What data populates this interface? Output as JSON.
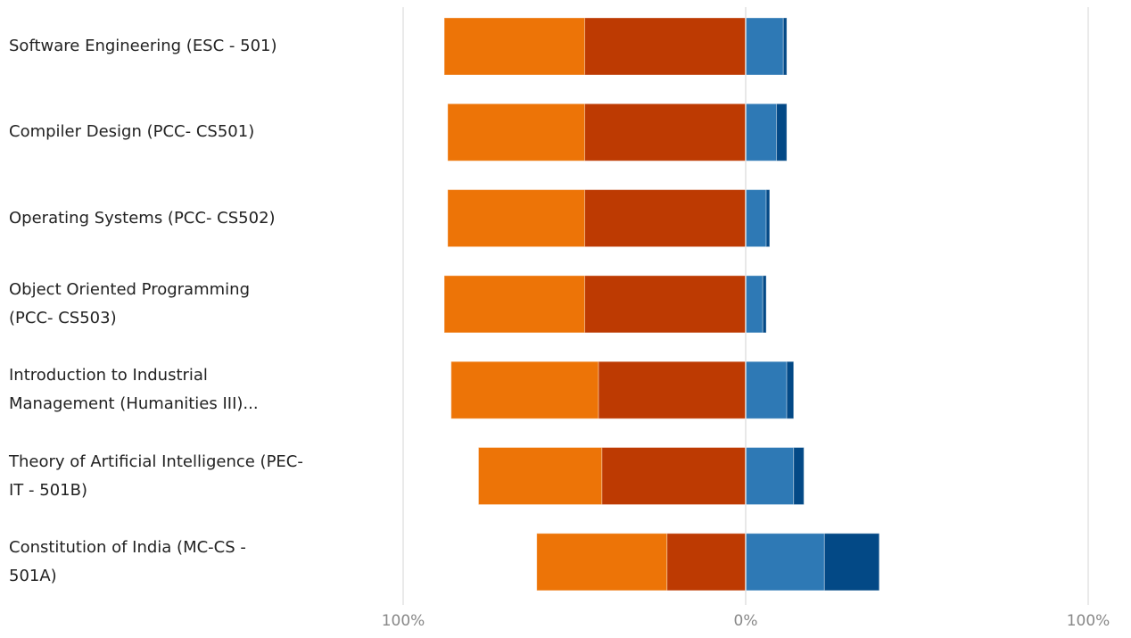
{
  "chart_data": {
    "type": "bar",
    "orientation": "horizontal",
    "stacked": "diverging",
    "categories": [
      "Software Engineering (ESC - 501)",
      "Compiler Design (PCC- CS501)",
      "Operating Systems (PCC- CS502)",
      "Object Oriented Programming\n(PCC- CS503)",
      "Introduction to Industrial\nManagement (Humanities III)...",
      "Theory of Artificial Intelligence (PEC-\nIT - 501B)",
      "Constitution of India (MC-CS -\n501A)"
    ],
    "segments": [
      {
        "side": "negative",
        "color": "#bd3a02",
        "values": [
          47,
          47,
          47,
          47,
          43,
          42,
          23
        ]
      },
      {
        "side": "negative",
        "color": "#ed7407",
        "values": [
          41,
          40,
          40,
          41,
          43,
          36,
          38
        ]
      },
      {
        "side": "positive",
        "color": "#2e79b5",
        "values": [
          11,
          9,
          6,
          5,
          12,
          14,
          23
        ]
      },
      {
        "side": "positive",
        "color": "#034986",
        "values": [
          1,
          3,
          1,
          1,
          2,
          3,
          16
        ]
      }
    ],
    "xlim": [
      -100,
      100
    ],
    "tick_labels": [
      "100%",
      "0%",
      "100%"
    ],
    "grid": true
  }
}
